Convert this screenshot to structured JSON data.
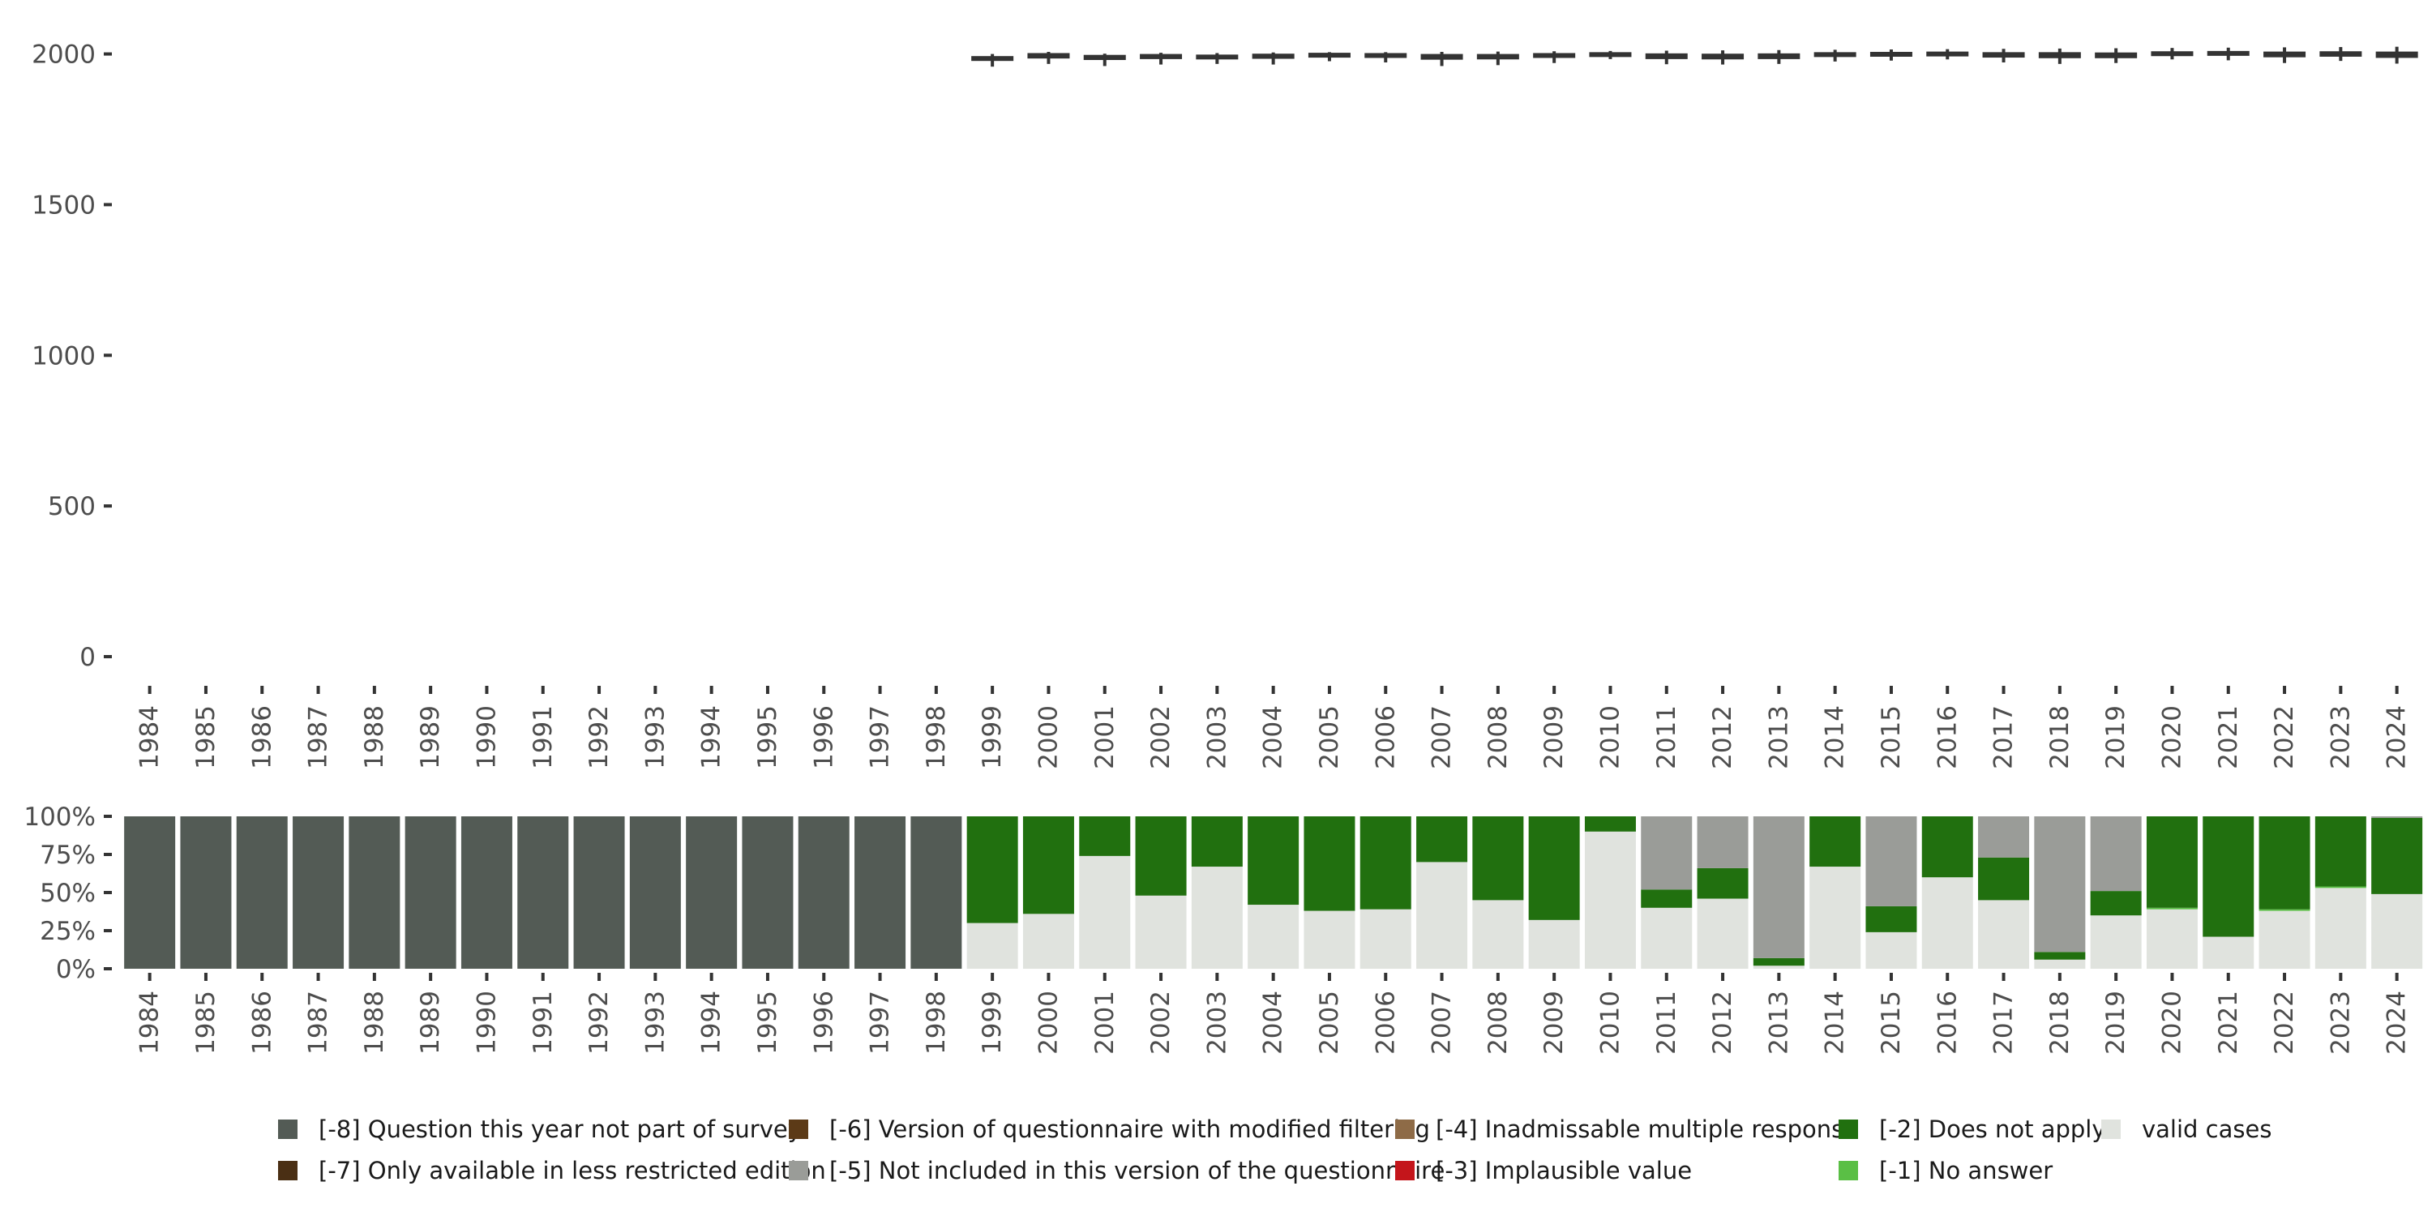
{
  "colors": {
    "box": "#333333",
    "axis_text": "#4d4d4d",
    "tick": "#333333",
    "legend_text": "#1a1a1a"
  },
  "chart_data": [
    {
      "type": "box",
      "title": "",
      "xlabel": "",
      "ylabel": "",
      "ylim": [
        0,
        2050
      ],
      "y_ticks": [
        0,
        500,
        1000,
        1500,
        2000
      ],
      "x": [
        "1984",
        "1985",
        "1986",
        "1987",
        "1988",
        "1989",
        "1990",
        "1991",
        "1992",
        "1993",
        "1994",
        "1995",
        "1996",
        "1997",
        "1998",
        "1999",
        "2000",
        "2001",
        "2002",
        "2003",
        "2004",
        "2005",
        "2006",
        "2007",
        "2008",
        "2009",
        "2010",
        "2011",
        "2012",
        "2013",
        "2014",
        "2015",
        "2016",
        "2017",
        "2018",
        "2019",
        "2020",
        "2021",
        "2022",
        "2023",
        "2024"
      ],
      "boxes": [
        {
          "year": "1999",
          "q1": 1977,
          "q3": 1993,
          "min": 1958,
          "max": 2000
        },
        {
          "year": "2000",
          "q1": 1985,
          "q3": 2003,
          "min": 1967,
          "max": 2007
        },
        {
          "year": "2001",
          "q1": 1980,
          "q3": 1997,
          "min": 1960,
          "max": 2001
        },
        {
          "year": "2002",
          "q1": 1983,
          "q3": 2000,
          "min": 1965,
          "max": 2004
        },
        {
          "year": "2003",
          "q1": 1985,
          "q3": 1998,
          "min": 1967,
          "max": 2003
        },
        {
          "year": "2004",
          "q1": 1984,
          "q3": 2001,
          "min": 1965,
          "max": 2005
        },
        {
          "year": "2005",
          "q1": 1989,
          "q3": 2004,
          "min": 1976,
          "max": 2006
        },
        {
          "year": "2006",
          "q1": 1988,
          "q3": 2003,
          "min": 1972,
          "max": 2006
        },
        {
          "year": "2007",
          "q1": 1981,
          "q3": 2000,
          "min": 1960,
          "max": 2007
        },
        {
          "year": "2008",
          "q1": 1982,
          "q3": 2000,
          "min": 1963,
          "max": 2008
        },
        {
          "year": "2009",
          "q1": 1987,
          "q3": 2003,
          "min": 1970,
          "max": 2009
        },
        {
          "year": "2010",
          "q1": 1995,
          "q3": 2006,
          "min": 1983,
          "max": 2010
        },
        {
          "year": "2011",
          "q1": 1983,
          "q3": 2002,
          "min": 1966,
          "max": 2011
        },
        {
          "year": "2012",
          "q1": 1982,
          "q3": 2001,
          "min": 1965,
          "max": 2012
        },
        {
          "year": "2013",
          "q1": 1983,
          "q3": 2002,
          "min": 1967,
          "max": 2013
        },
        {
          "year": "2014",
          "q1": 1990,
          "q3": 2006,
          "min": 1975,
          "max": 2014
        },
        {
          "year": "2015",
          "q1": 1993,
          "q3": 2007,
          "min": 1978,
          "max": 2015
        },
        {
          "year": "2016",
          "q1": 1995,
          "q3": 2008,
          "min": 1982,
          "max": 2016
        },
        {
          "year": "2017",
          "q1": 1988,
          "q3": 2006,
          "min": 1972,
          "max": 2017
        },
        {
          "year": "2018",
          "q1": 1986,
          "q3": 2006,
          "min": 1967,
          "max": 2018
        },
        {
          "year": "2019",
          "q1": 1986,
          "q3": 2005,
          "min": 1970,
          "max": 2019
        },
        {
          "year": "2020",
          "q1": 1995,
          "q3": 2009,
          "min": 1982,
          "max": 2020
        },
        {
          "year": "2021",
          "q1": 1994,
          "q3": 2010,
          "min": 1979,
          "max": 2021
        },
        {
          "year": "2022",
          "q1": 1989,
          "q3": 2008,
          "min": 1970,
          "max": 2022
        },
        {
          "year": "2023",
          "q1": 1991,
          "q3": 2009,
          "min": 1977,
          "max": 2023
        },
        {
          "year": "2024",
          "q1": 1987,
          "q3": 2008,
          "min": 1968,
          "max": 2024
        }
      ]
    },
    {
      "type": "stacked_bar_percent",
      "title": "",
      "ylim": [
        0,
        100
      ],
      "y_ticks": [
        0,
        25,
        50,
        75,
        100
      ],
      "y_tick_labels": [
        "0%",
        "25%",
        "50%",
        "75%",
        "100%"
      ],
      "categories": [
        "1984",
        "1985",
        "1986",
        "1987",
        "1988",
        "1989",
        "1990",
        "1991",
        "1992",
        "1993",
        "1994",
        "1995",
        "1996",
        "1997",
        "1998",
        "1999",
        "2000",
        "2001",
        "2002",
        "2003",
        "2004",
        "2005",
        "2006",
        "2007",
        "2008",
        "2009",
        "2010",
        "2011",
        "2012",
        "2013",
        "2014",
        "2015",
        "2016",
        "2017",
        "2018",
        "2019",
        "2020",
        "2021",
        "2022",
        "2023",
        "2024"
      ],
      "stack_order": [
        "valid cases",
        "[-1] No answer",
        "[-2] Does not apply",
        "[-5] Not included in this version of the questionnaire",
        "[-8] Question this year not part of survey"
      ],
      "series": [
        {
          "name": "[-8] Question this year not part of survey",
          "color": "#535b55",
          "values": [
            100,
            100,
            100,
            100,
            100,
            100,
            100,
            100,
            100,
            100,
            100,
            100,
            100,
            100,
            100,
            0,
            0,
            0,
            0,
            0,
            0,
            0,
            0,
            0,
            0,
            0,
            0,
            0,
            0,
            0,
            0,
            0,
            0,
            0,
            0,
            0,
            0,
            0,
            0,
            0,
            0
          ]
        },
        {
          "name": "[-5] Not included in this version of the questionnaire",
          "color": "#9a9c98",
          "values": [
            0,
            0,
            0,
            0,
            0,
            0,
            0,
            0,
            0,
            0,
            0,
            0,
            0,
            0,
            0,
            0,
            0,
            0,
            0,
            0,
            0,
            0,
            0,
            0,
            0,
            0,
            0,
            48,
            34,
            93,
            0,
            59,
            0,
            27,
            89,
            49,
            0,
            0,
            0,
            0,
            1
          ]
        },
        {
          "name": "[-2] Does not apply",
          "color": "#21700f",
          "values": [
            0,
            0,
            0,
            0,
            0,
            0,
            0,
            0,
            0,
            0,
            0,
            0,
            0,
            0,
            0,
            70,
            64,
            26,
            52,
            33,
            58,
            62,
            61,
            30,
            55,
            68,
            10,
            12,
            20,
            5,
            33,
            17,
            40,
            28,
            5,
            16,
            60,
            79,
            61,
            46,
            50
          ]
        },
        {
          "name": "[-1] No answer",
          "color": "#5abf45",
          "values": [
            0,
            0,
            0,
            0,
            0,
            0,
            0,
            0,
            0,
            0,
            0,
            0,
            0,
            0,
            0,
            0,
            0,
            0,
            0,
            0,
            0,
            0,
            0,
            0,
            0,
            0,
            0,
            0,
            0,
            0,
            0,
            0,
            0,
            0,
            0,
            0,
            1,
            0,
            1,
            1,
            0
          ]
        },
        {
          "name": "valid cases",
          "color": "#e0e3de",
          "values": [
            0,
            0,
            0,
            0,
            0,
            0,
            0,
            0,
            0,
            0,
            0,
            0,
            0,
            0,
            0,
            30,
            36,
            74,
            48,
            67,
            42,
            38,
            39,
            70,
            45,
            32,
            90,
            40,
            46,
            2,
            67,
            24,
            60,
            45,
            6,
            35,
            39,
            21,
            38,
            53,
            49
          ]
        }
      ]
    }
  ],
  "legend": [
    {
      "label": "[-8] Question this year not part of survey",
      "color": "#535b55"
    },
    {
      "label": "[-7] Only available in less restricted edition",
      "color": "#4a2f14"
    },
    {
      "label": "[-6] Version of questionnaire with modified filtering",
      "color": "#5c3a17"
    },
    {
      "label": "[-5] Not included in this version of the questionnaire",
      "color": "#9a9c98"
    },
    {
      "label": "[-4] Inadmissable multiple response",
      "color": "#8e6b47"
    },
    {
      "label": "[-3] Implausible value",
      "color": "#c4151b"
    },
    {
      "label": "[-2] Does not apply",
      "color": "#21700f"
    },
    {
      "label": "[-1] No answer",
      "color": "#5abf45"
    },
    {
      "label": "valid cases",
      "color": "#e0e3de"
    }
  ]
}
